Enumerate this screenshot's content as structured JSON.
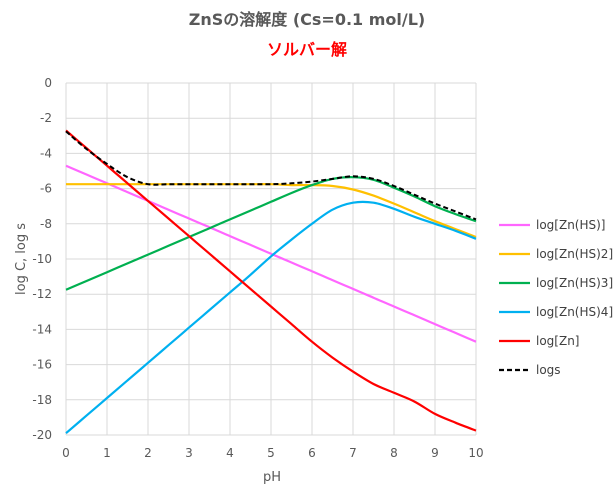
{
  "chart_data": {
    "type": "line",
    "title": "ZnSの溶解度 (Cs=0.1 mol/L)",
    "subtitle": "ソルバー解",
    "xlabel": "pH",
    "ylabel": "log C, log s",
    "xlim": [
      0,
      10
    ],
    "ylim": [
      -20,
      0
    ],
    "x_ticks": [
      "0",
      "1",
      "2",
      "3",
      "4",
      "5",
      "6",
      "7",
      "8",
      "9",
      "10"
    ],
    "y_ticks": [
      "0",
      "-2",
      "-4",
      "-6",
      "-8",
      "-10",
      "-12",
      "-14",
      "-16",
      "-18",
      "-20"
    ],
    "grid": true,
    "legend_position": "right",
    "x": [
      0,
      0.5,
      1,
      1.5,
      2,
      2.5,
      3,
      3.5,
      4,
      4.5,
      5,
      5.5,
      6,
      6.5,
      7,
      7.5,
      8,
      8.5,
      9,
      9.5,
      10
    ],
    "series": [
      {
        "name": "log[Zn(HS)]",
        "color": "#ff66ff",
        "dashed": false,
        "values": [
          -4.7,
          -5.2,
          -5.7,
          -6.2,
          -6.7,
          -7.2,
          -7.7,
          -8.2,
          -8.7,
          -9.2,
          -9.7,
          -10.2,
          -10.7,
          -11.2,
          -11.7,
          -12.2,
          -12.7,
          -13.2,
          -13.7,
          -14.2,
          -14.7
        ]
      },
      {
        "name": "log[Zn(HS)2]",
        "color": "#ffc000",
        "dashed": false,
        "values": [
          -5.75,
          -5.75,
          -5.75,
          -5.75,
          -5.75,
          -5.75,
          -5.75,
          -5.75,
          -5.75,
          -5.75,
          -5.75,
          -5.8,
          -5.8,
          -5.85,
          -6.05,
          -6.4,
          -6.85,
          -7.35,
          -7.85,
          -8.3,
          -8.75
        ]
      },
      {
        "name": "log[Zn(HS)3]",
        "color": "#00b050",
        "dashed": false,
        "values": [
          -11.75,
          -11.25,
          -10.75,
          -10.25,
          -9.75,
          -9.25,
          -8.75,
          -8.25,
          -7.75,
          -7.25,
          -6.75,
          -6.25,
          -5.8,
          -5.45,
          -5.35,
          -5.5,
          -5.95,
          -6.45,
          -7.0,
          -7.45,
          -7.85
        ]
      },
      {
        "name": "log[Zn(HS)4]",
        "color": "#00b0f0",
        "dashed": false,
        "values": [
          -19.9,
          -18.9,
          -17.9,
          -16.9,
          -15.9,
          -14.9,
          -13.9,
          -12.9,
          -11.9,
          -10.9,
          -9.85,
          -8.9,
          -8.0,
          -7.2,
          -6.8,
          -6.8,
          -7.15,
          -7.6,
          -8.0,
          -8.4,
          -8.85
        ]
      },
      {
        "name": "log[Zn]",
        "color": "#ff0000",
        "dashed": false,
        "values": [
          -2.7,
          -3.7,
          -4.7,
          -5.7,
          -6.7,
          -7.7,
          -8.7,
          -9.7,
          -10.7,
          -11.7,
          -12.7,
          -13.7,
          -14.7,
          -15.6,
          -16.4,
          -17.1,
          -17.6,
          -18.1,
          -18.8,
          -19.3,
          -19.75
        ]
      },
      {
        "name": "logs",
        "color": "#000000",
        "dashed": true,
        "values": [
          -2.75,
          -3.75,
          -4.6,
          -5.35,
          -5.75,
          -5.75,
          -5.75,
          -5.75,
          -5.75,
          -5.75,
          -5.75,
          -5.7,
          -5.6,
          -5.45,
          -5.3,
          -5.45,
          -5.85,
          -6.35,
          -6.85,
          -7.3,
          -7.75
        ]
      }
    ]
  }
}
